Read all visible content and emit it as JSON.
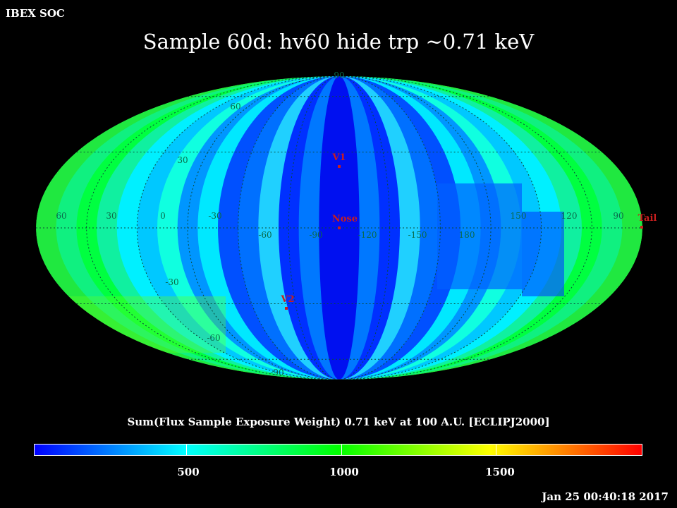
{
  "header": {
    "org": "IBEX SOC",
    "title": "Sample 60d: hv60 hide trp ~0.71 keV"
  },
  "colorbar": {
    "label": "Sum(Flux Sample Exposure Weight)  0.71 keV at 100 A.U. [ECLIPJ2000]",
    "tick_labels": [
      "500",
      "1000",
      "1500"
    ],
    "stops": [
      "#0000ff",
      "#00ffff",
      "#00ff00",
      "#ffff00",
      "#ff0000"
    ]
  },
  "map": {
    "lat_labels_left": [
      "90",
      "60",
      "30",
      "-30",
      "-60",
      "-90"
    ],
    "lon_labels": [
      "60",
      "30",
      "0",
      "-30",
      "-60",
      "-90",
      "-120",
      "-150",
      "180",
      "150",
      "120",
      "90"
    ],
    "markers": [
      {
        "name": "V1"
      },
      {
        "name": "Nose"
      },
      {
        "name": "V2"
      },
      {
        "name": "Tail"
      }
    ]
  },
  "footer": {
    "timestamp": "Jan 25 00:40:18 2017"
  }
}
